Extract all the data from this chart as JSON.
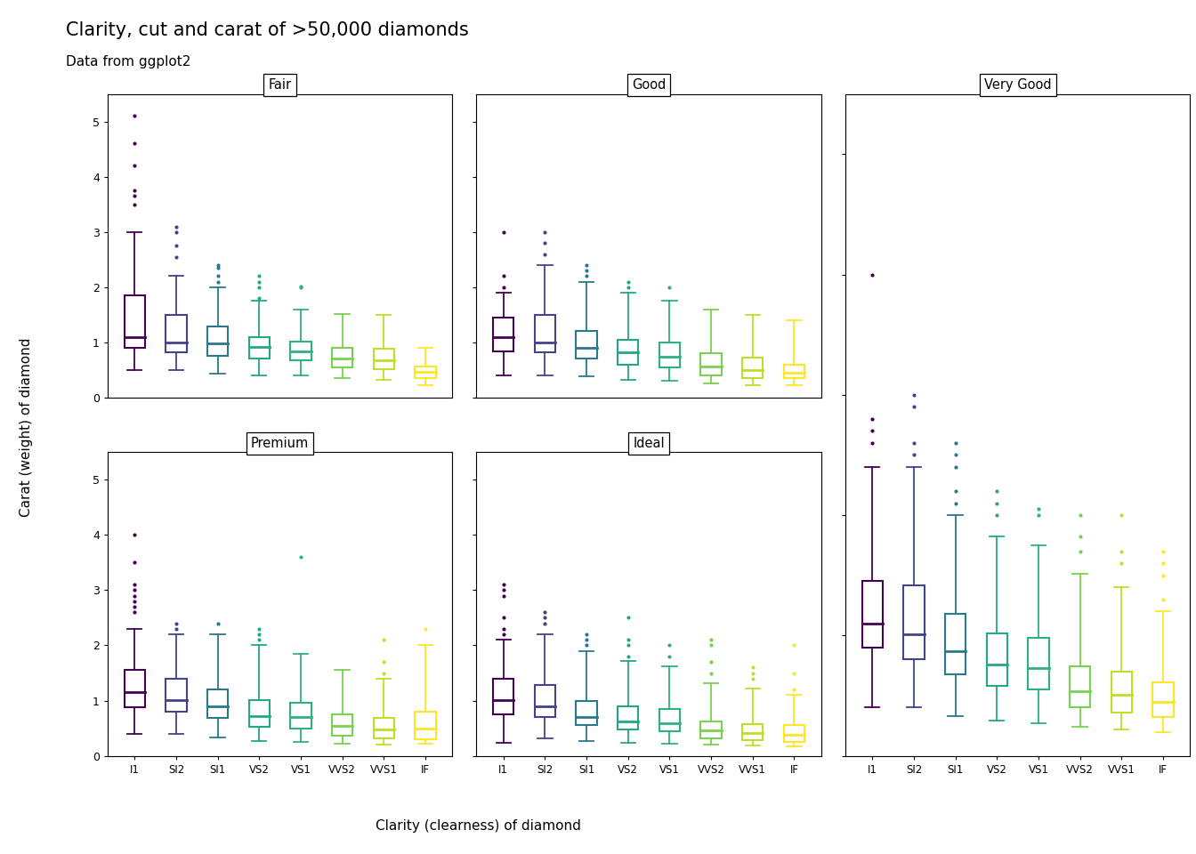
{
  "title": "Clarity, cut and carat of >50,000 diamonds",
  "subtitle": "Data from ggplot2",
  "xlabel": "Clarity (clearness) of diamond",
  "ylabel": "Carat (weight) of diamond",
  "cuts": [
    "Fair",
    "Good",
    "Very Good",
    "Premium",
    "Ideal"
  ],
  "clarities": [
    "I1",
    "SI2",
    "SI1",
    "VS2",
    "VS1",
    "VVS2",
    "VVS1",
    "IF"
  ],
  "clarity_colors": {
    "I1": "#440154",
    "SI2": "#414487",
    "SI1": "#2a788e",
    "VS2": "#22a884",
    "VS1": "#2db27d",
    "VVS2": "#7ad151",
    "VVS1": "#bddf26",
    "IF": "#fde725"
  },
  "ylim": [
    0,
    5.5
  ],
  "yticks": [
    0,
    1,
    2,
    3,
    4,
    5
  ],
  "box_data": {
    "Fair": {
      "I1": {
        "q1": 0.9,
        "med": 1.1,
        "q3": 1.85,
        "whislo": 0.5,
        "whishi": 3.0,
        "fliers": [
          3.5,
          3.65,
          3.75,
          4.2,
          4.6,
          5.1
        ]
      },
      "SI2": {
        "q1": 0.82,
        "med": 1.0,
        "q3": 1.5,
        "whislo": 0.5,
        "whishi": 2.2,
        "fliers": [
          2.55,
          2.75,
          3.0,
          3.1
        ]
      },
      "SI1": {
        "q1": 0.75,
        "med": 0.98,
        "q3": 1.28,
        "whislo": 0.44,
        "whishi": 2.0,
        "fliers": [
          2.1,
          2.2,
          2.35,
          2.4
        ]
      },
      "VS2": {
        "q1": 0.7,
        "med": 0.91,
        "q3": 1.1,
        "whislo": 0.4,
        "whishi": 1.76,
        "fliers": [
          1.8,
          2.0,
          2.1,
          2.2
        ]
      },
      "VS1": {
        "q1": 0.68,
        "med": 0.84,
        "q3": 1.02,
        "whislo": 0.4,
        "whishi": 1.6,
        "fliers": [
          2.0,
          2.01
        ]
      },
      "VVS2": {
        "q1": 0.55,
        "med": 0.7,
        "q3": 0.9,
        "whislo": 0.35,
        "whishi": 1.52,
        "fliers": []
      },
      "VVS1": {
        "q1": 0.52,
        "med": 0.68,
        "q3": 0.88,
        "whislo": 0.32,
        "whishi": 1.5,
        "fliers": []
      },
      "IF": {
        "q1": 0.35,
        "med": 0.47,
        "q3": 0.57,
        "whislo": 0.23,
        "whishi": 0.9,
        "fliers": []
      }
    },
    "Good": {
      "I1": {
        "q1": 0.84,
        "med": 1.1,
        "q3": 1.45,
        "whislo": 0.4,
        "whishi": 1.9,
        "fliers": [
          2.0,
          2.2,
          3.0
        ]
      },
      "SI2": {
        "q1": 0.82,
        "med": 1.0,
        "q3": 1.5,
        "whislo": 0.4,
        "whishi": 2.4,
        "fliers": [
          2.6,
          2.8,
          3.0
        ]
      },
      "SI1": {
        "q1": 0.7,
        "med": 0.9,
        "q3": 1.2,
        "whislo": 0.38,
        "whishi": 2.1,
        "fliers": [
          2.2,
          2.3,
          2.4
        ]
      },
      "VS2": {
        "q1": 0.6,
        "med": 0.82,
        "q3": 1.05,
        "whislo": 0.32,
        "whishi": 1.9,
        "fliers": [
          2.0,
          2.1
        ]
      },
      "VS1": {
        "q1": 0.55,
        "med": 0.74,
        "q3": 1.0,
        "whislo": 0.3,
        "whishi": 1.75,
        "fliers": [
          2.0
        ]
      },
      "VVS2": {
        "q1": 0.4,
        "med": 0.57,
        "q3": 0.81,
        "whislo": 0.25,
        "whishi": 1.6,
        "fliers": []
      },
      "VVS1": {
        "q1": 0.35,
        "med": 0.5,
        "q3": 0.72,
        "whislo": 0.23,
        "whishi": 1.5,
        "fliers": []
      },
      "IF": {
        "q1": 0.35,
        "med": 0.45,
        "q3": 0.6,
        "whislo": 0.22,
        "whishi": 1.4,
        "fliers": []
      }
    },
    "Very Good": {
      "I1": {
        "q1": 0.9,
        "med": 1.1,
        "q3": 1.45,
        "whislo": 0.4,
        "whishi": 2.4,
        "fliers": [
          2.6,
          2.7,
          2.8,
          4.0
        ]
      },
      "SI2": {
        "q1": 0.8,
        "med": 1.01,
        "q3": 1.42,
        "whislo": 0.4,
        "whishi": 2.4,
        "fliers": [
          2.5,
          2.6,
          2.9,
          3.0
        ]
      },
      "SI1": {
        "q1": 0.68,
        "med": 0.87,
        "q3": 1.18,
        "whislo": 0.33,
        "whishi": 2.0,
        "fliers": [
          2.1,
          2.2,
          2.4,
          2.5,
          2.6
        ]
      },
      "VS2": {
        "q1": 0.58,
        "med": 0.76,
        "q3": 1.02,
        "whislo": 0.29,
        "whishi": 1.82,
        "fliers": [
          2.0,
          2.1,
          2.2
        ]
      },
      "VS1": {
        "q1": 0.55,
        "med": 0.73,
        "q3": 0.98,
        "whislo": 0.27,
        "whishi": 1.75,
        "fliers": [
          2.0,
          2.05
        ]
      },
      "VVS2": {
        "q1": 0.4,
        "med": 0.54,
        "q3": 0.74,
        "whislo": 0.24,
        "whishi": 1.51,
        "fliers": [
          1.7,
          1.82,
          2.0
        ]
      },
      "VVS1": {
        "q1": 0.36,
        "med": 0.51,
        "q3": 0.7,
        "whislo": 0.22,
        "whishi": 1.4,
        "fliers": [
          1.6,
          1.7,
          2.0
        ]
      },
      "IF": {
        "q1": 0.32,
        "med": 0.45,
        "q3": 0.61,
        "whislo": 0.2,
        "whishi": 1.2,
        "fliers": [
          1.3,
          1.5,
          1.6,
          1.7
        ]
      }
    },
    "Premium": {
      "I1": {
        "q1": 0.88,
        "med": 1.15,
        "q3": 1.55,
        "whislo": 0.4,
        "whishi": 2.3,
        "fliers": [
          2.6,
          2.7,
          2.8,
          2.9,
          3.0,
          3.1,
          3.5,
          4.0
        ]
      },
      "SI2": {
        "q1": 0.8,
        "med": 1.01,
        "q3": 1.4,
        "whislo": 0.4,
        "whishi": 2.2,
        "fliers": [
          2.3,
          2.4
        ]
      },
      "SI1": {
        "q1": 0.68,
        "med": 0.9,
        "q3": 1.2,
        "whislo": 0.33,
        "whishi": 2.2,
        "fliers": [
          2.4
        ]
      },
      "VS2": {
        "q1": 0.52,
        "med": 0.72,
        "q3": 1.01,
        "whislo": 0.26,
        "whishi": 2.0,
        "fliers": [
          2.1,
          2.2,
          2.3
        ]
      },
      "VS1": {
        "q1": 0.5,
        "med": 0.7,
        "q3": 0.96,
        "whislo": 0.25,
        "whishi": 1.85,
        "fliers": [
          3.6
        ]
      },
      "VVS2": {
        "q1": 0.37,
        "med": 0.54,
        "q3": 0.75,
        "whislo": 0.22,
        "whishi": 1.55,
        "fliers": []
      },
      "VVS1": {
        "q1": 0.32,
        "med": 0.48,
        "q3": 0.69,
        "whislo": 0.21,
        "whishi": 1.4,
        "fliers": [
          1.5,
          1.7,
          2.1
        ]
      },
      "IF": {
        "q1": 0.3,
        "med": 0.5,
        "q3": 0.8,
        "whislo": 0.22,
        "whishi": 2.0,
        "fliers": [
          2.3
        ]
      }
    },
    "Ideal": {
      "I1": {
        "q1": 0.75,
        "med": 1.01,
        "q3": 1.4,
        "whislo": 0.23,
        "whishi": 2.1,
        "fliers": [
          2.2,
          2.3,
          2.5,
          2.9,
          3.0,
          3.1
        ]
      },
      "SI2": {
        "q1": 0.7,
        "med": 0.9,
        "q3": 1.28,
        "whislo": 0.31,
        "whishi": 2.2,
        "fliers": [
          2.4,
          2.5,
          2.6
        ]
      },
      "SI1": {
        "q1": 0.55,
        "med": 0.71,
        "q3": 1.0,
        "whislo": 0.27,
        "whishi": 1.9,
        "fliers": [
          2.0,
          2.1,
          2.2
        ]
      },
      "VS2": {
        "q1": 0.47,
        "med": 0.63,
        "q3": 0.9,
        "whislo": 0.23,
        "whishi": 1.72,
        "fliers": [
          1.8,
          2.0,
          2.1,
          2.5
        ]
      },
      "VS1": {
        "q1": 0.44,
        "med": 0.59,
        "q3": 0.84,
        "whislo": 0.22,
        "whishi": 1.62,
        "fliers": [
          1.8,
          2.0
        ]
      },
      "VVS2": {
        "q1": 0.32,
        "med": 0.46,
        "q3": 0.63,
        "whislo": 0.2,
        "whishi": 1.32,
        "fliers": [
          1.5,
          1.7,
          2.0,
          2.1
        ]
      },
      "VVS1": {
        "q1": 0.28,
        "med": 0.41,
        "q3": 0.57,
        "whislo": 0.18,
        "whishi": 1.22,
        "fliers": [
          1.4,
          1.5,
          1.6
        ]
      },
      "IF": {
        "q1": 0.25,
        "med": 0.38,
        "q3": 0.55,
        "whislo": 0.17,
        "whishi": 1.1,
        "fliers": [
          1.2,
          1.5,
          2.0
        ]
      }
    }
  }
}
